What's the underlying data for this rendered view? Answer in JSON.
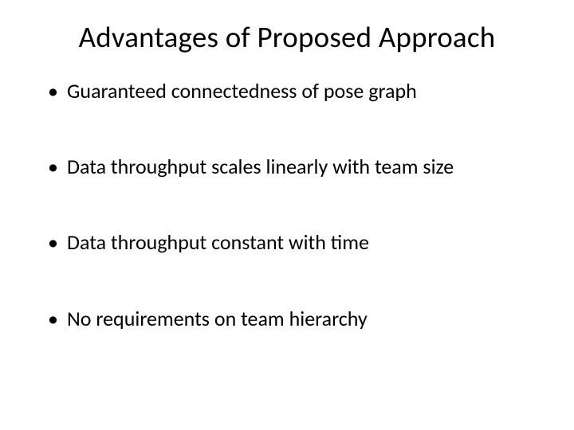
{
  "slide": {
    "title": "Advantages of Proposed Approach",
    "bullets": [
      "Guaranteed connectedness of pose graph",
      "Data throughput scales linearly with team size",
      "Data throughput constant with time",
      "No requirements on team hierarchy"
    ],
    "title_fontsize": 37,
    "bullet_fontsize": 26,
    "text_color": "#000000",
    "background_color": "#ffffff",
    "font_family": "Calibri"
  }
}
